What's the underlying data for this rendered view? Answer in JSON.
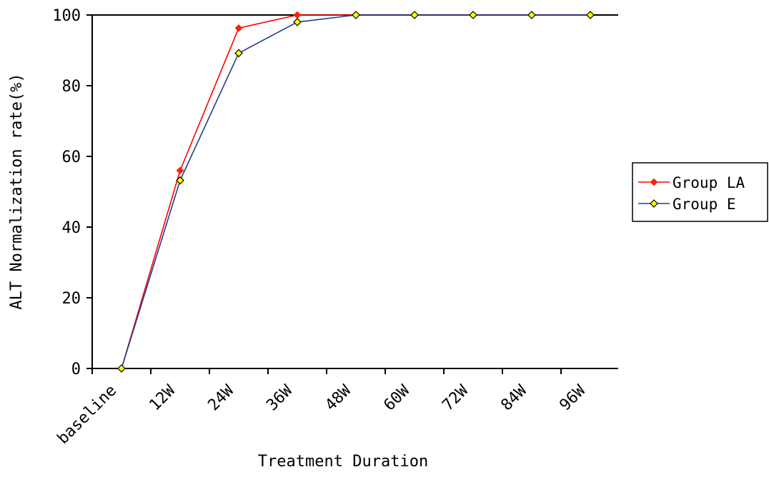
{
  "chart_data": {
    "type": "line",
    "title": "",
    "xlabel": "Treatment Duration",
    "ylabel": "ALT Normalization rate(%)",
    "ylim": [
      0,
      100
    ],
    "yticks": [
      0,
      20,
      40,
      60,
      80,
      100
    ],
    "tick_labels": [
      "baseline",
      "12W",
      "24W",
      "36W",
      "48W",
      "60W",
      "72W",
      "84W",
      "96W"
    ],
    "x": [
      0,
      1,
      2,
      3,
      4,
      5,
      6,
      7,
      8
    ],
    "grid": false,
    "legend_position": "right",
    "series": [
      {
        "name": "Group LA",
        "color": "#ff0000",
        "marker_color": "#ff2000",
        "marker": "diamond",
        "values": [
          0,
          56,
          96.3,
          100,
          100,
          100,
          100,
          100,
          100
        ]
      },
      {
        "name": "Group E",
        "color": "#1f3f8f",
        "marker_color": "#ffff00",
        "marker": "diamond",
        "values": [
          0,
          53.2,
          89.2,
          98,
          100,
          100,
          100,
          100,
          100
        ]
      }
    ]
  }
}
